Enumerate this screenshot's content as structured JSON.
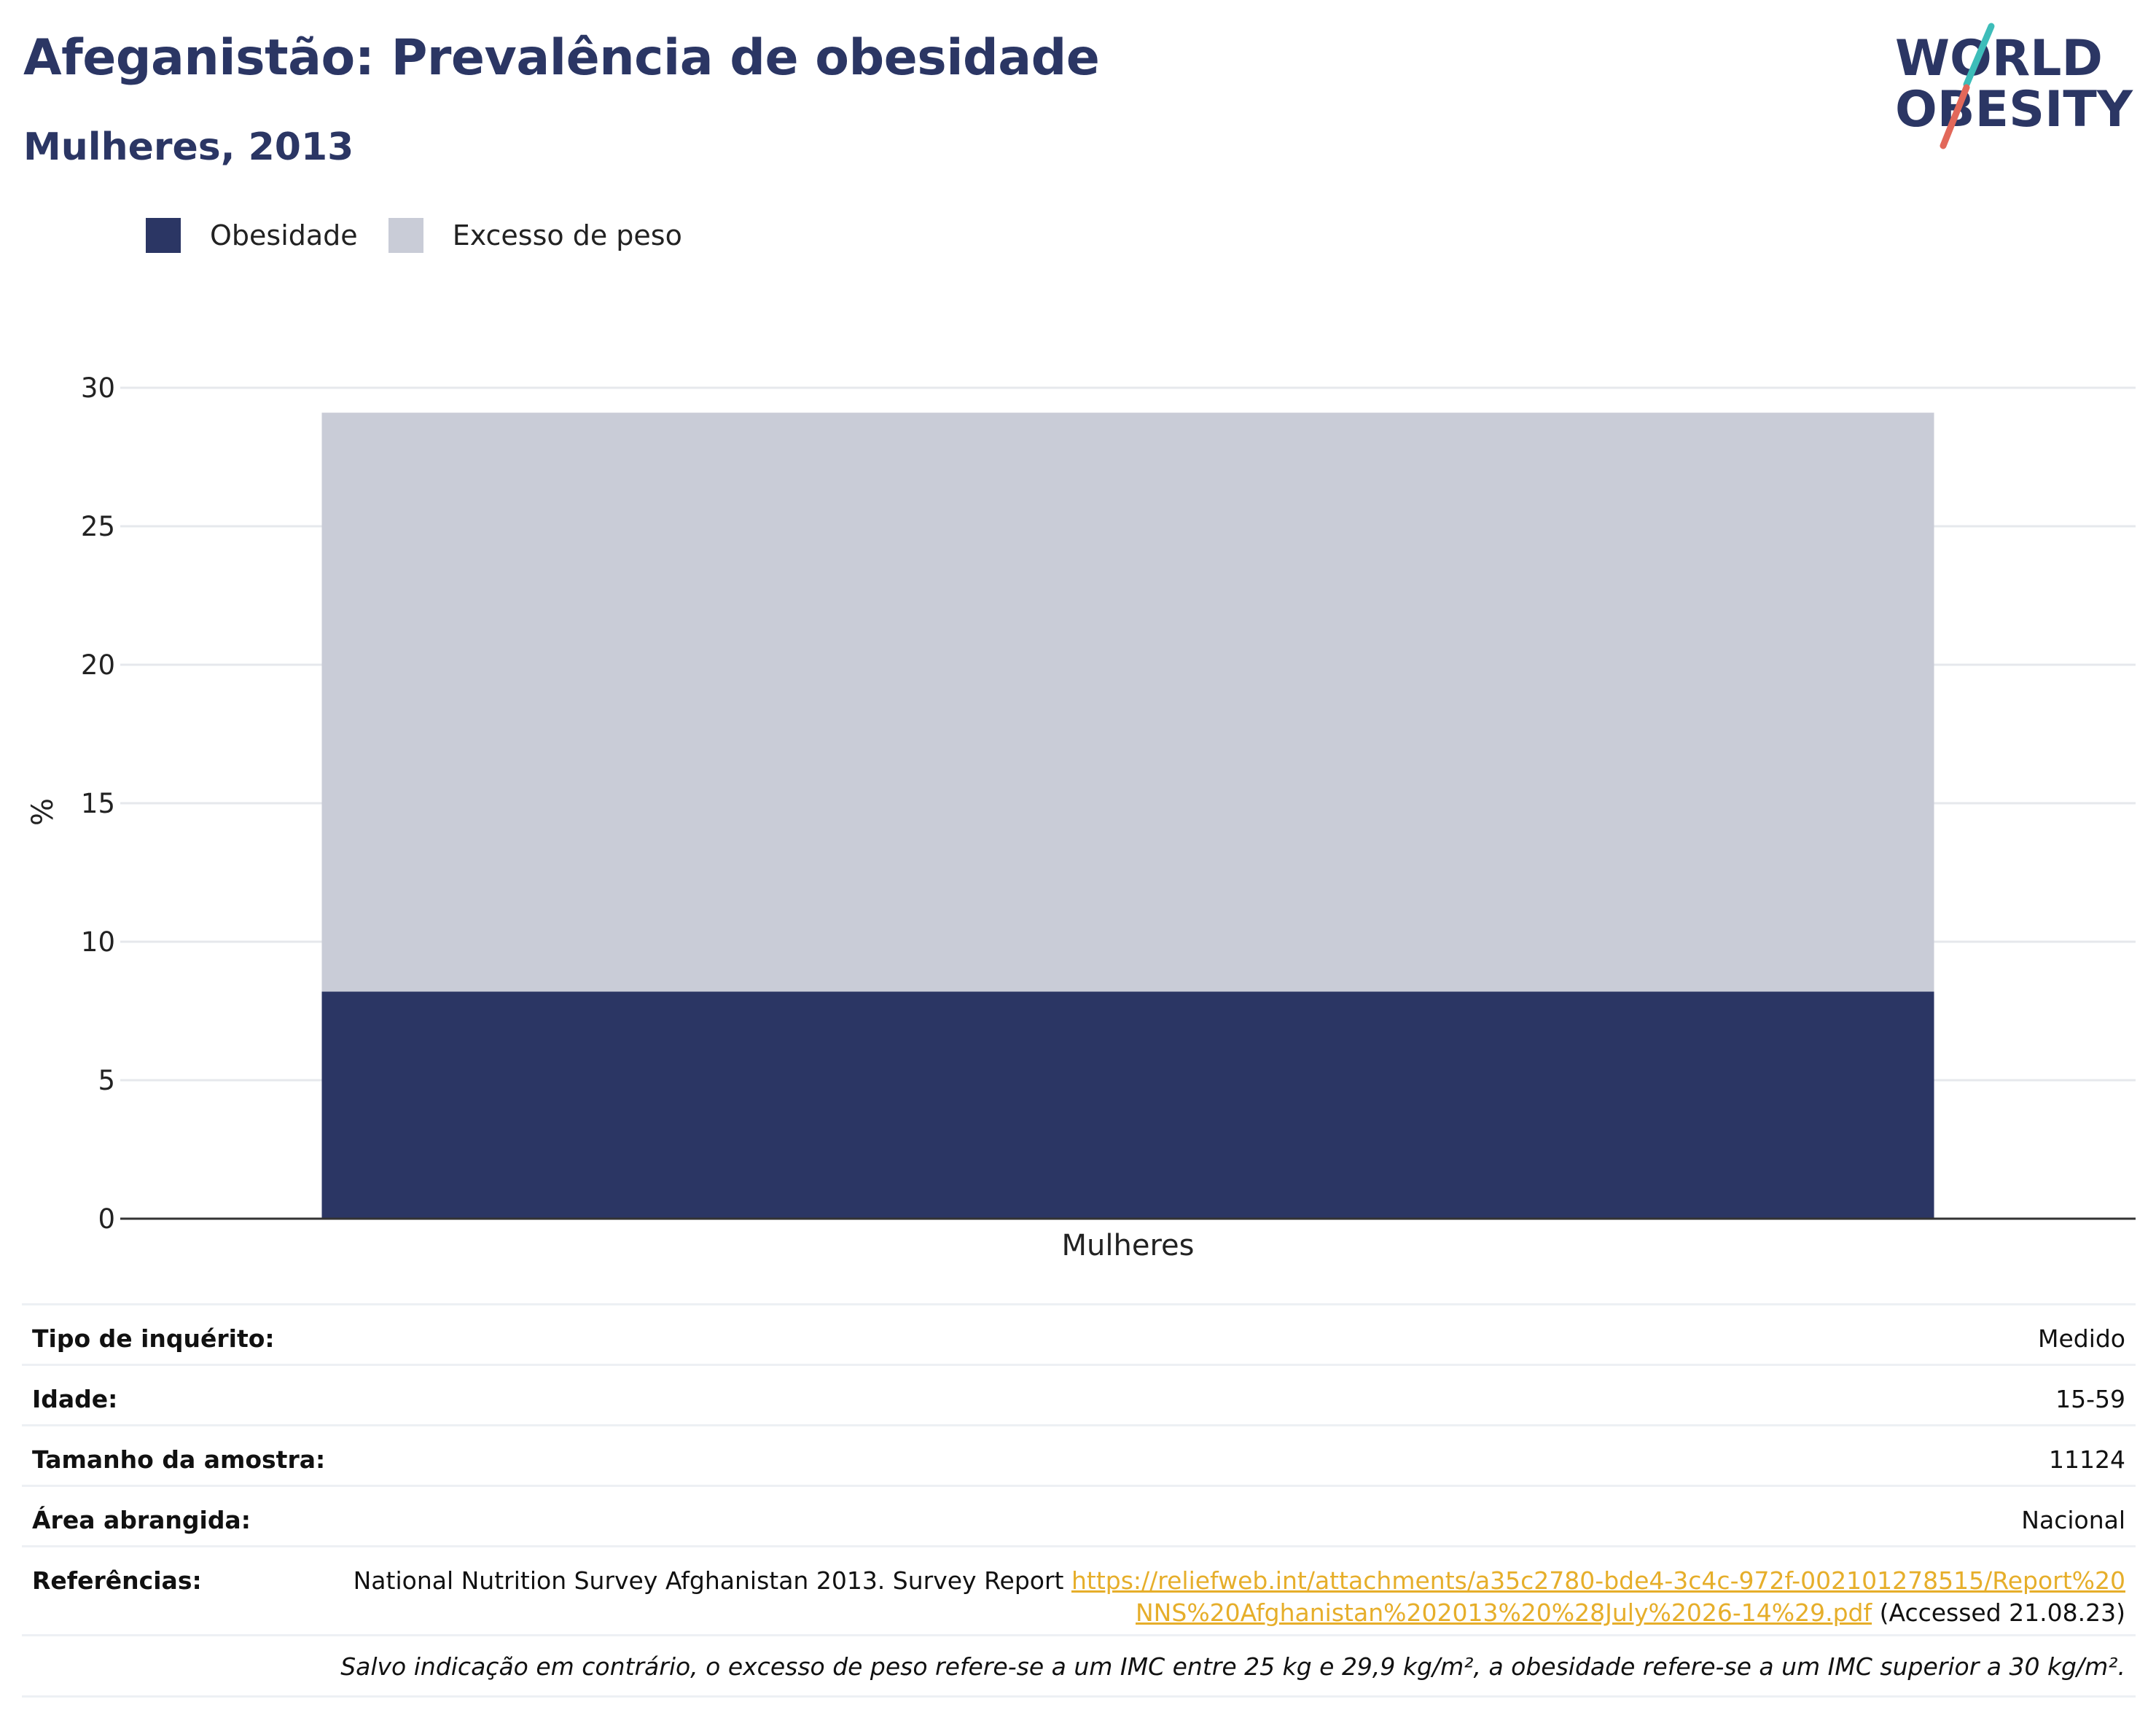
{
  "header": {
    "title": "Afeganistão: Prevalência de obesidade",
    "subtitle": "Mulheres, 2013"
  },
  "logo": {
    "line1": "WORLD",
    "line2": "OBESITY",
    "text_color": "#2b3664",
    "accent_top": "#3dbdb9",
    "accent_bottom": "#e2685a"
  },
  "chart_data": {
    "type": "bar",
    "stacked": true,
    "categories": [
      "Mulheres"
    ],
    "series": [
      {
        "name": "Obesidade",
        "values": [
          8.2
        ],
        "color": "#2b3664"
      },
      {
        "name": "Excesso de peso",
        "values": [
          20.9
        ],
        "color": "#c9ccd7"
      }
    ],
    "ylabel": "%",
    "xlabel": "",
    "ylim": [
      0,
      30
    ],
    "yticks": [
      0,
      5,
      10,
      15,
      20,
      25,
      30
    ],
    "grid": true,
    "legend_position": "top-left"
  },
  "info": {
    "survey_type": {
      "label": "Tipo de inquérito:",
      "value": "Medido"
    },
    "age": {
      "label": "Idade:",
      "value": "15-59"
    },
    "sample_size": {
      "label": "Tamanho da amostra:",
      "value": "11124"
    },
    "area": {
      "label": "Área abrangida:",
      "value": "Nacional"
    },
    "references": {
      "label": "Referências:",
      "text": "National Nutrition Survey Afghanistan 2013. Survey Report",
      "link": "https://reliefweb.int/attachments/a35c2780-bde4-3c4c-972f-002101278515/Report%20NNS%20Afghanistan%202013%20%28July%2026-14%29.pdf",
      "accessed": "(Accessed 21.08.23)"
    },
    "note": "Salvo indicação em contrário, o excesso de peso refere-se a um IMC entre 25 kg e 29,9 kg/m², a obesidade refere-se a um IMC superior a 30 kg/m²."
  }
}
